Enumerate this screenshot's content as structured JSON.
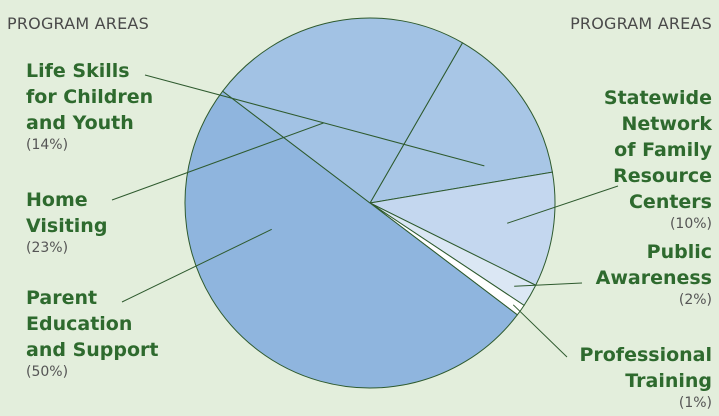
{
  "headings": {
    "left": "PROGRAM AREAS",
    "right": "PROGRAM AREAS"
  },
  "chart_data": {
    "type": "pie",
    "title": "",
    "slices": [
      {
        "label_lines": [
          "Life Skills",
          "for Children",
          "and Youth"
        ],
        "percent_text": "(14%)",
        "value": 14,
        "color": "#a8c6e6"
      },
      {
        "label_lines": [
          "Statewide",
          "Network",
          "of Family",
          "Resource",
          "Centers"
        ],
        "percent_text": "(10%)",
        "value": 10,
        "color": "#c4d7ef"
      },
      {
        "label_lines": [
          "Public",
          "Awareness"
        ],
        "percent_text": "(2%)",
        "value": 2,
        "color": "#dbe7f4"
      },
      {
        "label_lines": [
          "Professional",
          "Training"
        ],
        "percent_text": "(1%)",
        "value": 1,
        "color": "#ffffff"
      },
      {
        "label_lines": [
          "Parent",
          "Education",
          "and Support"
        ],
        "percent_text": "(50%)",
        "value": 50,
        "color": "#8fb5de"
      },
      {
        "label_lines": [
          "Home",
          "Visiting"
        ],
        "percent_text": "(23%)",
        "value": 23,
        "color": "#a2c2e4"
      }
    ]
  }
}
